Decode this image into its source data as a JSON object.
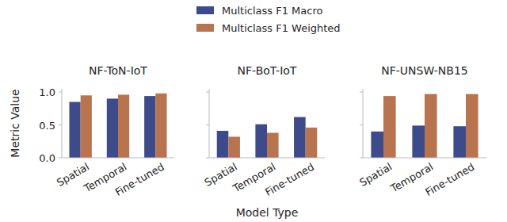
{
  "chart_data": [
    {
      "type": "bar",
      "title": "NF-ToN-IoT",
      "y_label": "Metric Value",
      "categories": [
        "Spatial",
        "Temporal",
        "Fine-tuned"
      ],
      "series": [
        {
          "name": "Multiclass F1 Macro",
          "color": "#3d4b8a",
          "values": [
            0.85,
            0.9,
            0.94
          ]
        },
        {
          "name": "Multiclass F1 Weighted",
          "color": "#b8734f",
          "values": [
            0.95,
            0.96,
            0.98
          ]
        }
      ],
      "ylim": [
        0,
        1.05
      ],
      "yticks": [
        {
          "value": 0,
          "label": "0.0"
        },
        0.5,
        {
          "value": 1,
          "label": "1.0"
        }
      ],
      "grid": false,
      "legend": "top"
    },
    {
      "type": "bar",
      "title": "NF-BoT-IoT",
      "x_label": "Model Type",
      "categories": [
        "Spatial",
        "Temporal",
        "Fine-tuned"
      ],
      "series": [
        {
          "name": "Multiclass F1 Macro",
          "color": "#3d4b8a",
          "values": [
            0.41,
            0.51,
            0.62
          ]
        },
        {
          "name": "Multiclass F1 Weighted",
          "color": "#b8734f",
          "values": [
            0.32,
            0.38,
            0.46
          ]
        }
      ],
      "ylim": [
        0,
        1.05
      ],
      "yticks": [
        0,
        0.5,
        1
      ],
      "grid": false,
      "tick_labels": "x"
    },
    {
      "type": "bar",
      "title": "NF-UNSW-NB15",
      "categories": [
        "Spatial",
        "Temporal",
        "Fine-tuned"
      ],
      "series": [
        {
          "name": "Multiclass F1 Macro",
          "color": "#3d4b8a",
          "values": [
            0.4,
            0.49,
            0.48
          ]
        },
        {
          "name": "Multiclass F1 Weighted",
          "color": "#b8734f",
          "values": [
            0.94,
            0.97,
            0.97
          ]
        }
      ],
      "ylim": [
        0,
        1.05
      ],
      "yticks": [
        0,
        0.5,
        1
      ],
      "grid": false,
      "tick_labels": "x"
    }
  ]
}
